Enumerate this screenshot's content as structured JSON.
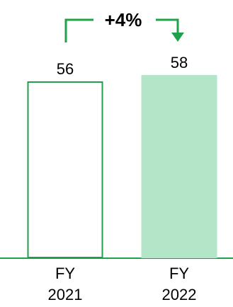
{
  "chart_data": {
    "type": "bar",
    "categories": [
      "FY 2021",
      "FY 2022"
    ],
    "category_lines": [
      [
        "FY",
        "2021"
      ],
      [
        "FY",
        "2022"
      ]
    ],
    "values": [
      56,
      58
    ],
    "value_labels": [
      "56",
      "58"
    ],
    "bar_styles": [
      "outline",
      "filled"
    ],
    "change_annotation": "+4%",
    "colors": {
      "accent": "#1fa04a",
      "bar_fill": "#b3e6c8",
      "text": "#000000"
    },
    "ylim": [
      0,
      60
    ]
  }
}
